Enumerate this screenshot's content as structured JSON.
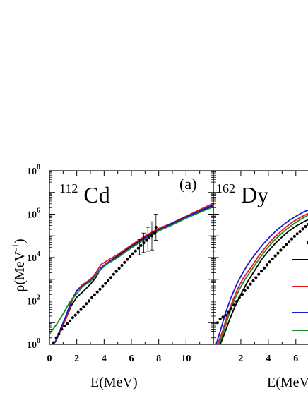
{
  "chart_data": [
    {
      "type": "line",
      "panel_label": "(a)",
      "nucleus": {
        "mass": "112",
        "symbol": "Cd"
      },
      "xlabel": "E(MeV)",
      "ylabel": "ρ(MeV",
      "ylabel_sup": "-1",
      "ylabel_tail": ")",
      "xlim": [
        0,
        12
      ],
      "ylim": [
        1,
        100000000
      ],
      "yscale": "log",
      "x_ticks": [
        0,
        2,
        4,
        6,
        8,
        10
      ],
      "y_ticks": [
        {
          "value": 1,
          "base": "10",
          "exp": "0"
        },
        {
          "value": 100,
          "base": "10",
          "exp": "2"
        },
        {
          "value": 10000,
          "base": "10",
          "exp": "4"
        },
        {
          "value": 1000000,
          "base": "10",
          "exp": "6"
        },
        {
          "value": 100000000,
          "base": "10",
          "exp": "8"
        }
      ],
      "series": [
        {
          "color": "#000000",
          "points": [
            [
              0.4,
              1.2
            ],
            [
              0.8,
              4
            ],
            [
              1.2,
              15
            ],
            [
              1.6,
              60
            ],
            [
              2.0,
              150
            ],
            [
              2.4,
              250
            ],
            [
              3.0,
              600
            ],
            [
              3.4,
              1200
            ],
            [
              3.8,
              3500
            ],
            [
              4.2,
              5500
            ],
            [
              5.0,
              12000
            ],
            [
              6.0,
              35000
            ],
            [
              7.0,
              90000
            ],
            [
              8.0,
              200000
            ],
            [
              9.0,
              350000
            ],
            [
              10.0,
              700000
            ],
            [
              11.0,
              1300000
            ],
            [
              12.0,
              2500000
            ]
          ]
        },
        {
          "color": "#e8191c",
          "points": [
            [
              0.4,
              1.2
            ],
            [
              0.8,
              4
            ],
            [
              1.2,
              15
            ],
            [
              1.6,
              80
            ],
            [
              2.0,
              300
            ],
            [
              2.4,
              550
            ],
            [
              3.0,
              1000
            ],
            [
              3.4,
              2000
            ],
            [
              3.8,
              5000
            ],
            [
              4.2,
              7000
            ],
            [
              5.0,
              14000
            ],
            [
              6.0,
              38000
            ],
            [
              7.0,
              100000
            ],
            [
              8.0,
              220000
            ],
            [
              9.0,
              400000
            ],
            [
              10.0,
              800000
            ],
            [
              11.0,
              1600000
            ],
            [
              12.0,
              3200000
            ]
          ]
        },
        {
          "color": "#1a1ad6",
          "points": [
            [
              0.4,
              1.2
            ],
            [
              0.8,
              5
            ],
            [
              1.2,
              20
            ],
            [
              1.6,
              100
            ],
            [
              2.0,
              300
            ],
            [
              2.4,
              500
            ],
            [
              3.0,
              900
            ],
            [
              3.4,
              1600
            ],
            [
              3.8,
              3500
            ],
            [
              4.2,
              5500
            ],
            [
              5.0,
              11000
            ],
            [
              6.0,
              30000
            ],
            [
              7.0,
              80000
            ],
            [
              8.0,
              190000
            ],
            [
              9.0,
              380000
            ],
            [
              10.0,
              750000
            ],
            [
              11.0,
              1400000
            ],
            [
              12.0,
              2700000
            ]
          ]
        },
        {
          "color": "#1b8a2a",
          "points": [
            [
              0.0,
              3
            ],
            [
              0.5,
              8
            ],
            [
              1.0,
              25
            ],
            [
              1.5,
              90
            ],
            [
              2.0,
              220
            ],
            [
              2.4,
              450
            ],
            [
              3.0,
              800
            ],
            [
              3.4,
              1500
            ],
            [
              3.8,
              3000
            ],
            [
              4.2,
              5000
            ],
            [
              5.0,
              10000
            ],
            [
              6.0,
              28000
            ],
            [
              7.0,
              70000
            ],
            [
              8.0,
              170000
            ],
            [
              9.0,
              320000
            ],
            [
              10.0,
              650000
            ],
            [
              11.0,
              1200000
            ],
            [
              12.0,
              2200000
            ]
          ]
        }
      ],
      "experimental": {
        "color": "#000000",
        "points": [
          [
            0.3,
            1.2
          ],
          [
            0.5,
            2
          ],
          [
            0.7,
            3
          ],
          [
            0.9,
            5
          ],
          [
            1.1,
            7
          ],
          [
            1.3,
            9
          ],
          [
            1.5,
            12
          ],
          [
            1.7,
            17
          ],
          [
            1.9,
            22
          ],
          [
            2.1,
            30
          ],
          [
            2.3,
            40
          ],
          [
            2.5,
            55
          ],
          [
            2.7,
            75
          ],
          [
            2.9,
            100
          ],
          [
            3.1,
            140
          ],
          [
            3.3,
            190
          ],
          [
            3.5,
            260
          ],
          [
            3.7,
            350
          ],
          [
            3.9,
            480
          ],
          [
            4.1,
            650
          ],
          [
            4.3,
            900
          ],
          [
            4.5,
            1200
          ],
          [
            4.7,
            1700
          ],
          [
            4.9,
            2300
          ],
          [
            5.1,
            3200
          ],
          [
            5.3,
            4400
          ],
          [
            5.5,
            6000
          ],
          [
            5.7,
            8200
          ],
          [
            5.9,
            11000
          ],
          [
            6.1,
            15000
          ],
          [
            6.3,
            20000
          ],
          [
            6.5,
            27000
          ],
          [
            6.7,
            36000
          ],
          [
            6.9,
            48000
          ],
          [
            7.1,
            62000
          ],
          [
            7.3,
            80000
          ],
          [
            7.5,
            100000
          ],
          [
            7.7,
            130000
          ],
          [
            7.8,
            250000
          ]
        ],
        "error_points": [
          [
            6.6,
            30000,
            0.35
          ],
          [
            6.9,
            48000,
            0.45
          ],
          [
            7.2,
            70000,
            0.55
          ],
          [
            7.5,
            100000,
            0.65
          ],
          [
            7.8,
            250000,
            0.6
          ]
        ]
      }
    },
    {
      "type": "line",
      "nucleus": {
        "mass": "162",
        "symbol": "Dy"
      },
      "xlabel": "E(MeV)",
      "xlim": [
        0,
        7.5
      ],
      "ylim": [
        1,
        100000000
      ],
      "yscale": "log",
      "x_ticks": [
        2,
        4,
        6
      ],
      "series": [
        {
          "color": "#000000",
          "points": [
            [
              0.5,
              1
            ],
            [
              0.8,
              3
            ],
            [
              1.2,
              15
            ],
            [
              1.6,
              60
            ],
            [
              2.0,
              200
            ],
            [
              2.5,
              800
            ],
            [
              3.0,
              2500
            ],
            [
              3.5,
              8000
            ],
            [
              4.0,
              20000
            ],
            [
              4.5,
              45000
            ],
            [
              5.0,
              90000
            ],
            [
              5.5,
              170000
            ],
            [
              6.0,
              280000
            ],
            [
              6.5,
              420000
            ],
            [
              7.0,
              600000
            ],
            [
              7.5,
              800000
            ]
          ]
        },
        {
          "color": "#e8191c",
          "points": [
            [
              0.3,
              1
            ],
            [
              0.6,
              3
            ],
            [
              1.0,
              20
            ],
            [
              1.4,
              100
            ],
            [
              1.8,
              400
            ],
            [
              2.2,
              1200
            ],
            [
              2.8,
              4000
            ],
            [
              3.3,
              12000
            ],
            [
              3.8,
              30000
            ],
            [
              4.3,
              70000
            ],
            [
              4.8,
              140000
            ],
            [
              5.3,
              260000
            ],
            [
              5.8,
              450000
            ],
            [
              6.3,
              700000
            ],
            [
              6.8,
              1000000
            ],
            [
              7.5,
              1500000
            ]
          ]
        },
        {
          "color": "#1a1ad6",
          "points": [
            [
              0.2,
              1
            ],
            [
              0.5,
              4
            ],
            [
              0.9,
              30
            ],
            [
              1.3,
              150
            ],
            [
              1.7,
              600
            ],
            [
              2.1,
              1800
            ],
            [
              2.6,
              6000
            ],
            [
              3.1,
              16000
            ],
            [
              3.6,
              40000
            ],
            [
              4.1,
              90000
            ],
            [
              4.6,
              180000
            ],
            [
              5.1,
              330000
            ],
            [
              5.6,
              560000
            ],
            [
              6.1,
              870000
            ],
            [
              6.6,
              1300000
            ],
            [
              7.5,
              2200000
            ]
          ]
        },
        {
          "color": "#1b8a2a",
          "points": [
            [
              0.4,
              1
            ],
            [
              0.7,
              3
            ],
            [
              1.1,
              20
            ],
            [
              1.5,
              100
            ],
            [
              1.9,
              350
            ],
            [
              2.3,
              1000
            ],
            [
              2.9,
              3500
            ],
            [
              3.4,
              10000
            ],
            [
              3.9,
              26000
            ],
            [
              4.4,
              60000
            ],
            [
              4.9,
              120000
            ],
            [
              5.4,
              220000
            ],
            [
              5.9,
              380000
            ],
            [
              6.4,
              600000
            ],
            [
              6.9,
              900000
            ],
            [
              7.5,
              1300000
            ]
          ]
        }
      ],
      "experimental": {
        "color": "#000000",
        "points": [
          [
            0.3,
            10
          ],
          [
            0.5,
            15
          ],
          [
            0.7,
            18
          ],
          [
            0.9,
            22
          ],
          [
            1.1,
            30
          ],
          [
            1.3,
            45
          ],
          [
            1.5,
            65
          ],
          [
            1.7,
            95
          ],
          [
            1.9,
            140
          ],
          [
            2.1,
            200
          ],
          [
            2.3,
            300
          ],
          [
            2.5,
            420
          ],
          [
            2.7,
            600
          ],
          [
            2.9,
            850
          ],
          [
            3.1,
            1200
          ],
          [
            3.3,
            1700
          ],
          [
            3.5,
            2400
          ],
          [
            3.7,
            3300
          ],
          [
            3.9,
            4600
          ],
          [
            4.1,
            6300
          ],
          [
            4.3,
            8700
          ],
          [
            4.5,
            12000
          ],
          [
            4.7,
            16000
          ],
          [
            4.9,
            22000
          ],
          [
            5.1,
            30000
          ],
          [
            5.3,
            40000
          ],
          [
            5.5,
            54000
          ],
          [
            5.7,
            72000
          ],
          [
            5.9,
            95000
          ],
          [
            6.1,
            125000
          ],
          [
            6.3,
            160000
          ],
          [
            6.5,
            210000
          ],
          [
            6.7,
            270000
          ],
          [
            6.9,
            340000
          ],
          [
            7.1,
            430000
          ],
          [
            7.3,
            540000
          ],
          [
            7.5,
            680000
          ]
        ]
      },
      "legend_placement": "right"
    }
  ]
}
